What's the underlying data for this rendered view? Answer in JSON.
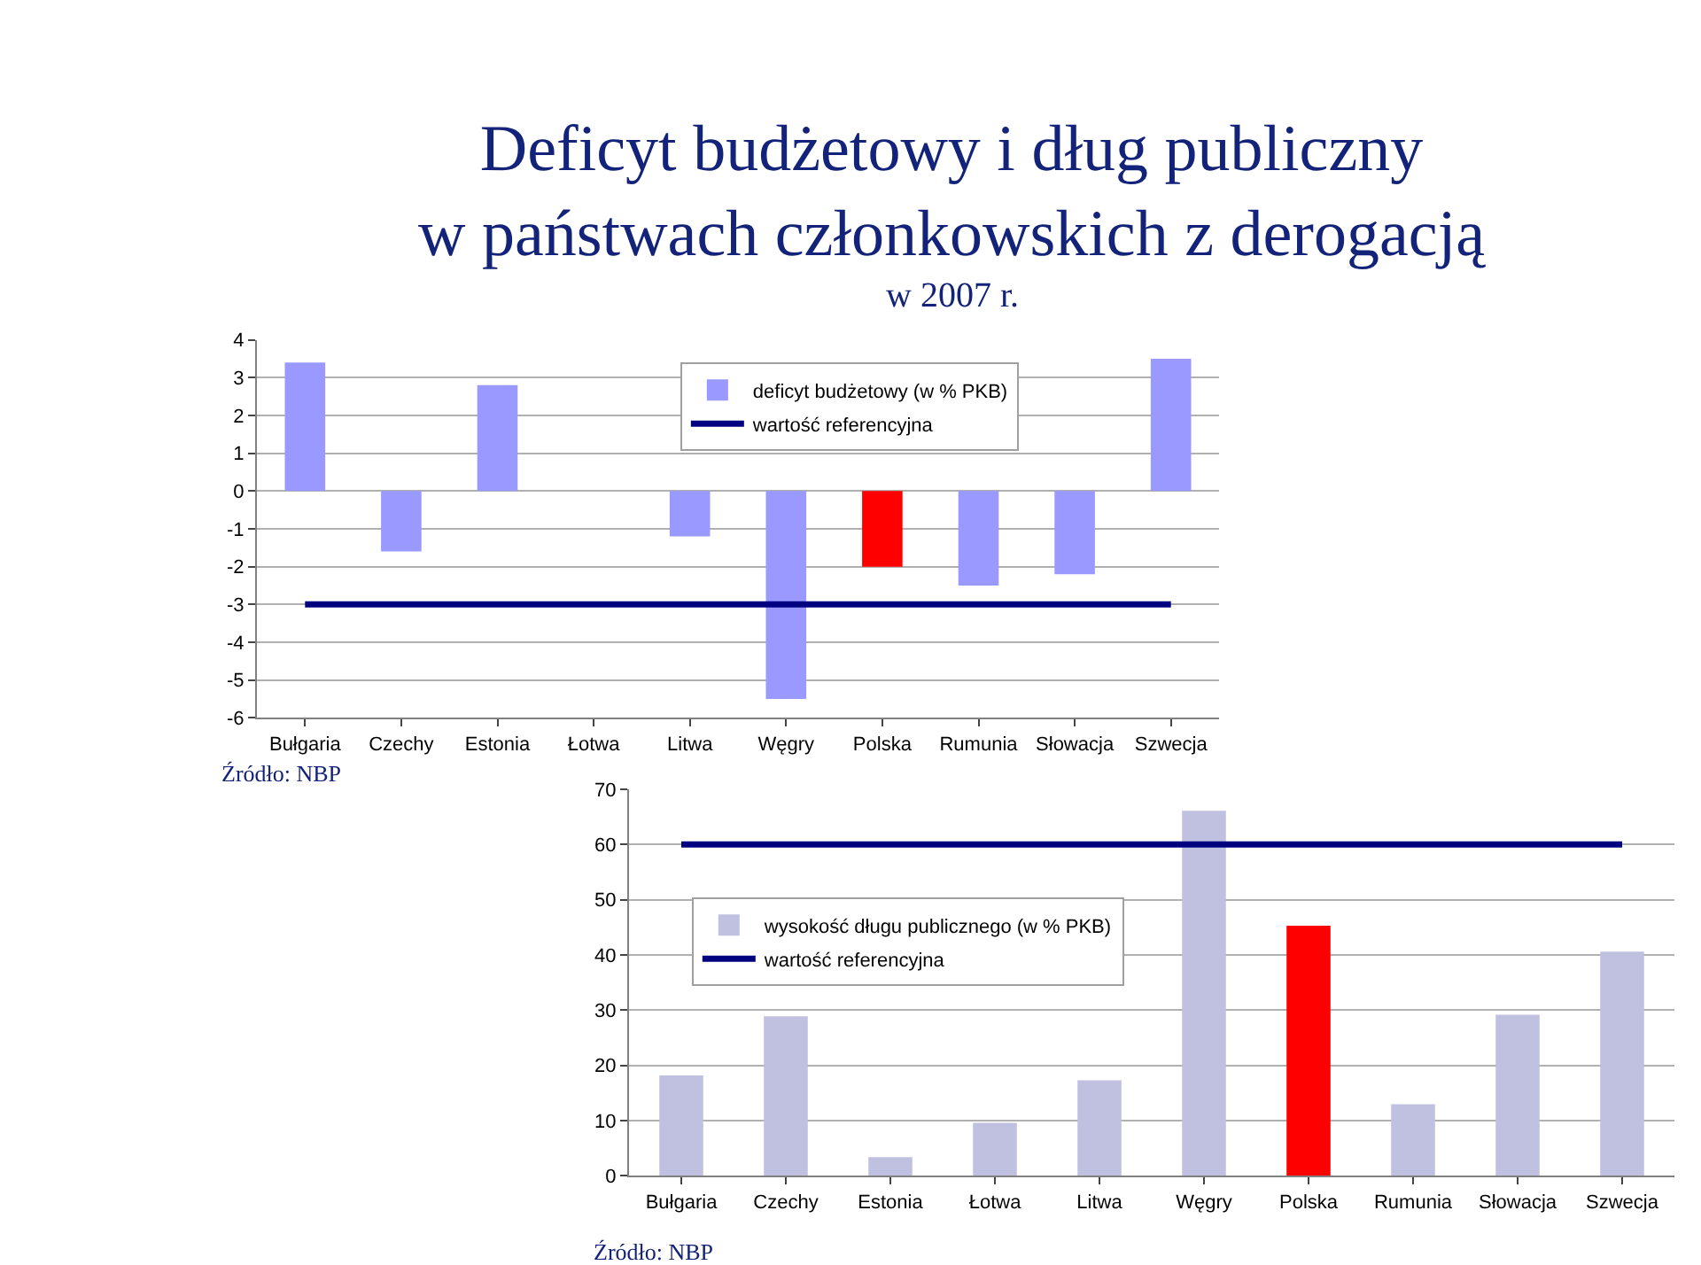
{
  "chart_data": [
    {
      "type": "bar",
      "title": "Deficyt budżetowy i dług publiczny\nw państwach członkowskich z derogacją",
      "subtitle": "w 2007 r.",
      "categories": [
        "Bułgaria",
        "Czechy",
        "Estonia",
        "Łotwa",
        "Litwa",
        "Węgry",
        "Polska",
        "Rumunia",
        "Słowacja",
        "Szwecja"
      ],
      "series": [
        {
          "name": "deficyt budżetowy (w % PKB)",
          "colors": [
            "#9999ff",
            "#9999ff",
            "#9999ff",
            "#9999ff",
            "#9999ff",
            "#9999ff",
            "#ff0000",
            "#9999ff",
            "#9999ff",
            "#9999ff"
          ],
          "values": [
            3.4,
            -1.6,
            2.8,
            0,
            -1.2,
            -5.5,
            -2.0,
            -2.5,
            -2.2,
            3.5
          ]
        },
        {
          "name": "wartość referencyjna",
          "type": "line",
          "color": "#000080",
          "values": [
            -3,
            -3,
            -3,
            -3,
            -3,
            -3,
            -3,
            -3,
            -3,
            -3
          ]
        }
      ],
      "ylim": [
        -6,
        4
      ],
      "yticks": [
        -6,
        -5,
        -4,
        -3,
        -2,
        -1,
        0,
        1,
        2,
        3,
        4
      ],
      "grid": "y",
      "legend": "top",
      "annotations": [
        "Źródło: NBP"
      ]
    },
    {
      "type": "bar",
      "categories": [
        "Bułgaria",
        "Czechy",
        "Estonia",
        "Łotwa",
        "Litwa",
        "Węgry",
        "Polska",
        "Rumunia",
        "Słowacja",
        "Szwecja"
      ],
      "series": [
        {
          "name": "wysokość długu publicznego (w % PKB)",
          "colors": [
            "#c0c0e0",
            "#c0c0e0",
            "#c0c0e0",
            "#c0c0e0",
            "#c0c0e0",
            "#c0c0e0",
            "#ff0000",
            "#c0c0e0",
            "#c0c0e0",
            "#c0c0e0"
          ],
          "values": [
            18.2,
            28.9,
            3.4,
            9.6,
            17.3,
            66.1,
            45.3,
            13.0,
            29.2,
            40.6
          ]
        },
        {
          "name": "wartość referencyjna",
          "type": "line",
          "color": "#000080",
          "values": [
            60,
            60,
            60,
            60,
            60,
            60,
            60,
            60,
            60,
            60
          ]
        }
      ],
      "ylim": [
        0,
        70
      ],
      "yticks": [
        0,
        10,
        20,
        30,
        40,
        50,
        60,
        70
      ],
      "grid": "y",
      "legend": "left",
      "annotations": [
        "Źródło: NBP"
      ]
    }
  ]
}
